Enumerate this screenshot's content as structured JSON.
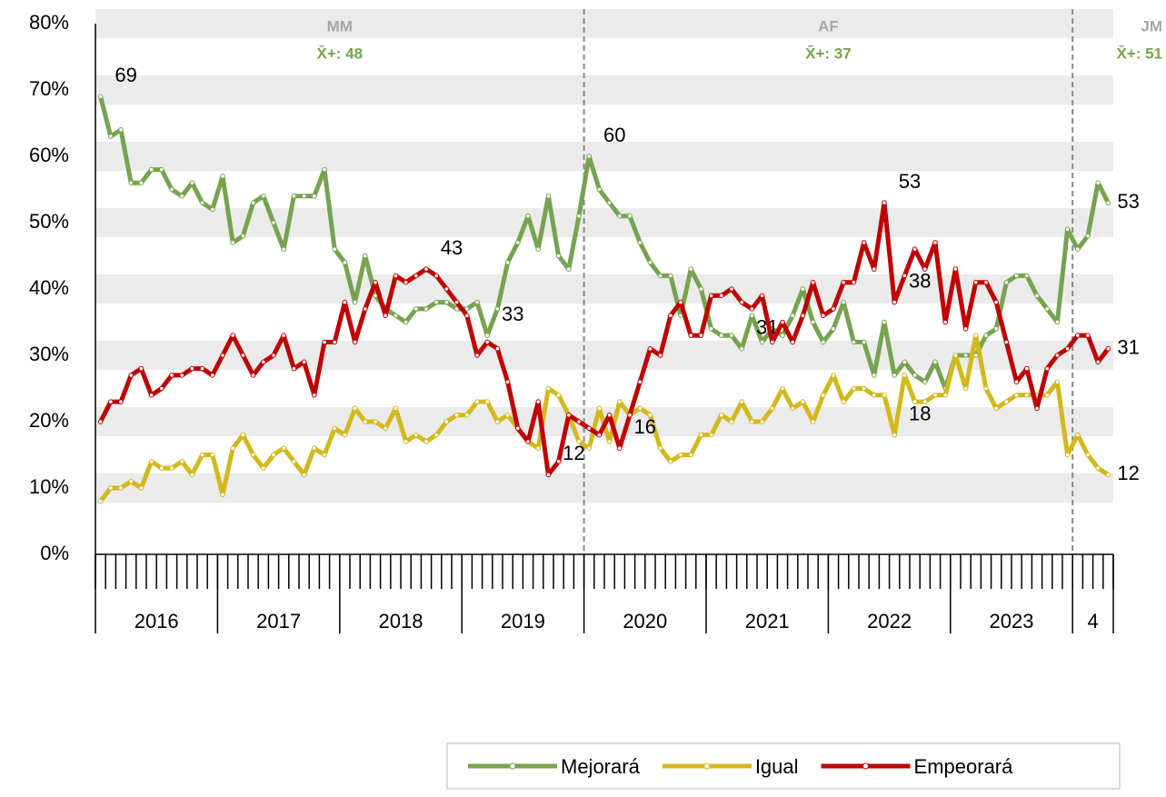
{
  "chart_data": {
    "type": "line",
    "categories": [
      null,
      null,
      null,
      null,
      null,
      null,
      null,
      null,
      null,
      null,
      null,
      null,
      null,
      null,
      null,
      null,
      null,
      null,
      null,
      null,
      null,
      null,
      null,
      null,
      null,
      null,
      null,
      null,
      null,
      null,
      null,
      null,
      null,
      null,
      null,
      null,
      null,
      null,
      null,
      null,
      null,
      null,
      null,
      null,
      null,
      null,
      null,
      null,
      null,
      null,
      null,
      null,
      null,
      null,
      null,
      null,
      null,
      null,
      null,
      null,
      null,
      null,
      null,
      null,
      null,
      null,
      null,
      null,
      null,
      null,
      null,
      null,
      null,
      null,
      null,
      null,
      null,
      null,
      null,
      null,
      null,
      null,
      null,
      null,
      null,
      null,
      null,
      null,
      null,
      null,
      null,
      null,
      null,
      null,
      null,
      null,
      null,
      null,
      null,
      null
    ],
    "groups": [
      "2016",
      "2017",
      "2018",
      "2019",
      "2020",
      "2021",
      "2022",
      "2023",
      "4"
    ],
    "group_sizes": [
      12,
      12,
      12,
      12,
      12,
      12,
      12,
      12,
      4
    ],
    "periods": [
      {
        "label": "MM",
        "mean": "X̄+: 48"
      },
      {
        "label": "AF",
        "mean": "X̄+: 37"
      },
      {
        "label": "JM",
        "mean": "X̄+: 51"
      }
    ],
    "dividers": [
      48,
      96
    ],
    "series": [
      {
        "name": "Mejorará",
        "color": "#77a350",
        "labeled_points": [
          0,
          38,
          48,
          63,
          99
        ],
        "values": [
          69,
          63,
          64,
          56,
          56,
          58,
          58,
          55,
          54,
          56,
          53,
          52,
          57,
          47,
          48,
          53,
          54,
          50,
          46,
          54,
          54,
          54,
          58,
          46,
          44,
          38,
          45,
          39,
          37,
          36,
          35,
          37,
          37,
          38,
          38,
          37,
          37,
          38,
          33,
          37,
          44,
          47,
          51,
          46,
          54,
          45,
          43,
          51,
          60,
          55,
          53,
          51,
          51,
          47,
          44,
          42,
          42,
          36,
          43,
          40,
          34,
          33,
          33,
          31,
          36,
          32,
          34,
          33,
          36,
          40,
          35,
          32,
          34,
          38,
          32,
          32,
          27,
          35,
          27,
          29,
          27,
          26,
          29,
          25,
          30,
          30,
          30,
          33,
          34,
          41,
          42,
          42,
          39,
          37,
          35,
          49,
          46,
          48,
          56,
          53
        ]
      },
      {
        "name": "Igual",
        "color": "#d3b81c",
        "labeled_points": [
          78,
          99
        ],
        "values": [
          8,
          10,
          10,
          11,
          10,
          14,
          13,
          13,
          14,
          12,
          15,
          15,
          9,
          16,
          18,
          15,
          13,
          15,
          16,
          14,
          12,
          16,
          15,
          19,
          18,
          22,
          20,
          20,
          19,
          22,
          17,
          18,
          17,
          18,
          20,
          21,
          21,
          23,
          23,
          20,
          21,
          19,
          17,
          16,
          25,
          24,
          21,
          17,
          16,
          22,
          17,
          23,
          21,
          22,
          21,
          16,
          14,
          15,
          15,
          18,
          18,
          21,
          20,
          23,
          20,
          20,
          22,
          25,
          22,
          23,
          20,
          24,
          27,
          23,
          25,
          25,
          24,
          24,
          18,
          27,
          23,
          23,
          24,
          24,
          30,
          25,
          33,
          25,
          22,
          23,
          24,
          24,
          24,
          24,
          26,
          15,
          18,
          15,
          13,
          12
        ]
      },
      {
        "name": "Empeorará",
        "color": "#c00000",
        "labeled_points": [
          32,
          44,
          51,
          77,
          78,
          99
        ],
        "values": [
          20,
          23,
          23,
          27,
          28,
          24,
          25,
          27,
          27,
          28,
          28,
          27,
          30,
          33,
          30,
          27,
          29,
          30,
          33,
          28,
          29,
          24,
          32,
          32,
          38,
          32,
          37,
          41,
          36,
          42,
          41,
          42,
          43,
          42,
          40,
          38,
          36,
          30,
          32,
          31,
          26,
          19,
          17,
          23,
          12,
          14,
          21,
          20,
          19,
          18,
          21,
          16,
          21,
          26,
          31,
          30,
          36,
          38,
          33,
          33,
          39,
          39,
          40,
          38,
          37,
          39,
          32,
          35,
          32,
          36,
          41,
          36,
          37,
          41,
          41,
          47,
          43,
          53,
          38,
          42,
          46,
          43,
          47,
          35,
          43,
          34,
          41,
          41,
          38,
          32,
          26,
          28,
          22,
          28,
          30,
          31,
          33,
          33,
          29,
          31
        ]
      }
    ],
    "ylim": [
      0,
      80
    ],
    "yticks": [
      {
        "value": 0,
        "label": "0%"
      },
      {
        "value": 10,
        "label": "10%"
      },
      {
        "value": 20,
        "label": "20%"
      },
      {
        "value": 30,
        "label": "30%"
      },
      {
        "value": 40,
        "label": "40%"
      },
      {
        "value": 50,
        "label": "50%"
      },
      {
        "value": 60,
        "label": "60%"
      },
      {
        "value": 70,
        "label": "70%"
      },
      {
        "value": 80,
        "label": "80%"
      }
    ],
    "grid": "bands",
    "legend": "bottom-right"
  }
}
